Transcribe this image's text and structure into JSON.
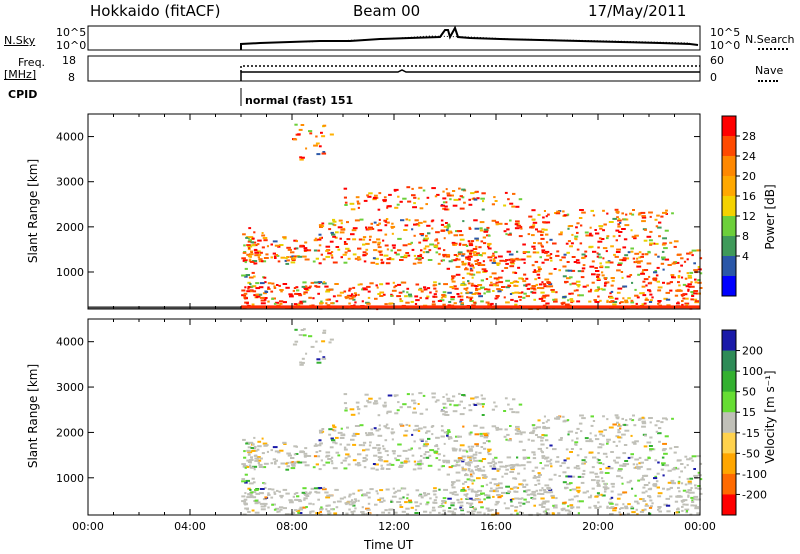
{
  "header": {
    "station": "Hokkaido (fitACF)",
    "beam": "Beam 00",
    "date": "17/May/2011"
  },
  "top_panels": {
    "nsky_label": "N.Sky",
    "nsearch_label": "N.Search",
    "freq_label_line1": "Freq.",
    "freq_label_line2": "[MHz]",
    "nave_label": "Nave",
    "cpid_label": "CPID",
    "cpid_value": "normal (fast) 151",
    "nsky_ticks": [
      "10^5",
      "10^0"
    ],
    "nsearch_ticks": [
      "10^5",
      "10^0"
    ],
    "freq_ticks": [
      "18",
      "8"
    ],
    "nave_ticks": [
      "60",
      "0"
    ]
  },
  "chart_data": [
    {
      "type": "heatmap",
      "panel": "power",
      "ylabel": "Slant Range [km]",
      "xlabel": "",
      "y_ticks": [
        "4000",
        "3000",
        "2000",
        "1000"
      ],
      "ylim": [
        180,
        4500
      ],
      "x_start_hour": 6,
      "colorbar_label": "Power [dB]",
      "colorbar_ticks": [
        "28",
        "24",
        "20",
        "16",
        "12",
        "8",
        "4"
      ],
      "colorbar_colors": [
        "#ff0000",
        "#ff4a00",
        "#ff8800",
        "#ffa800",
        "#f4d200",
        "#6ccf3a",
        "#3f9a5a",
        "#2a57a8",
        "#0000ff"
      ]
    },
    {
      "type": "heatmap",
      "panel": "velocity",
      "ylabel": "Slant Range [km]",
      "xlabel": "Time UT",
      "y_ticks": [
        "4000",
        "3000",
        "2000",
        "1000"
      ],
      "ylim": [
        180,
        4500
      ],
      "x_ticks": [
        "00:00",
        "04:00",
        "08:00",
        "12:00",
        "16:00",
        "20:00",
        "00:00"
      ],
      "colorbar_label": "Velocity [m s⁻¹]",
      "colorbar_ticks": [
        "200",
        "100",
        "50",
        "15",
        "-15",
        "-50",
        "-100",
        "-200"
      ],
      "colorbar_colors": [
        "#1a1aa8",
        "#2e8b57",
        "#33b030",
        "#66dd33",
        "#c0c0b8",
        "#ffd24d",
        "#ffa600",
        "#ff6a00",
        "#ff0000"
      ]
    }
  ]
}
